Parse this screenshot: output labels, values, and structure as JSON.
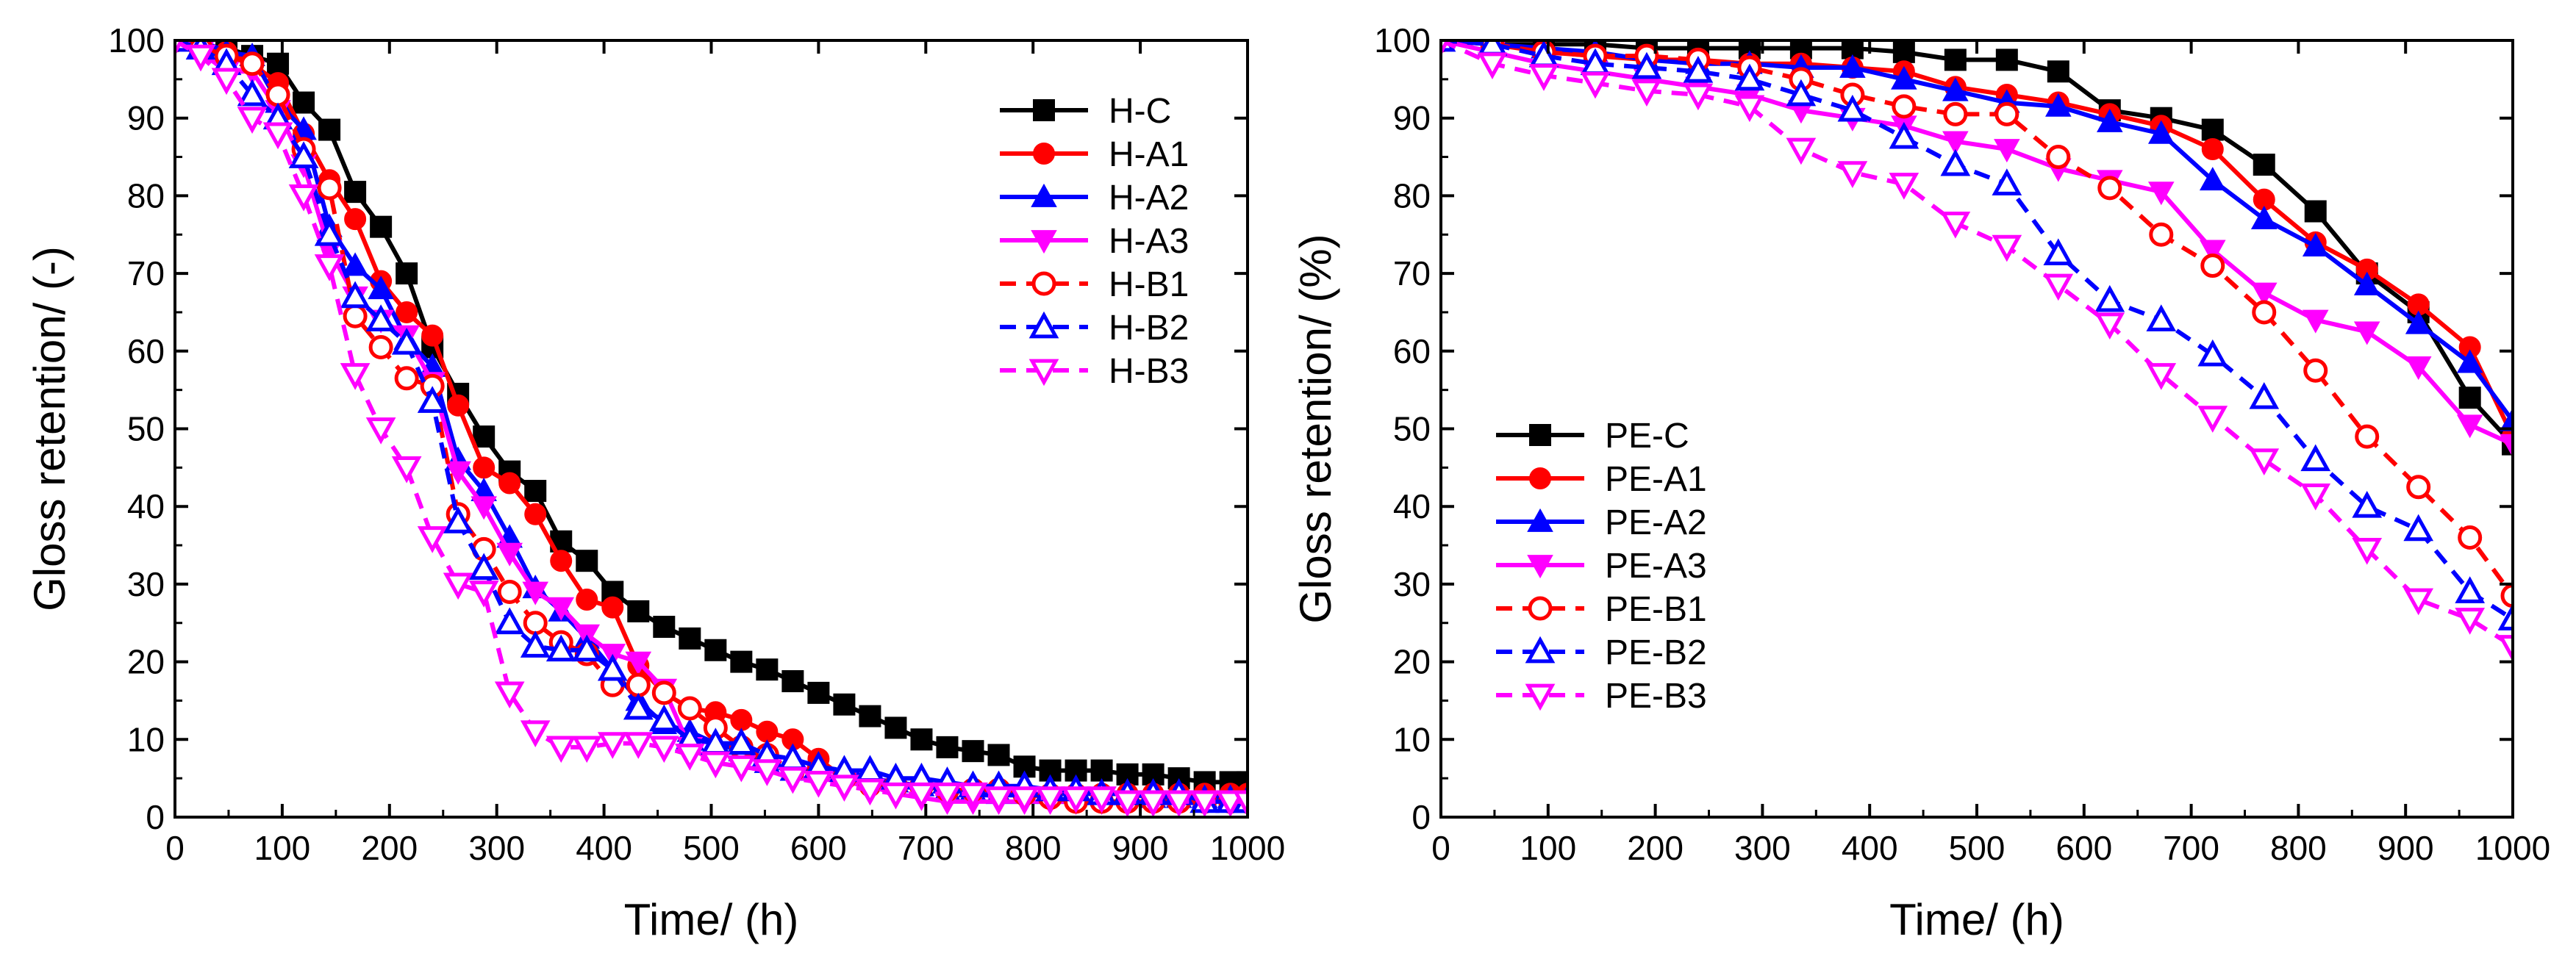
{
  "chart_data": [
    {
      "type": "line",
      "title": "",
      "xlabel": "Time/ (h)",
      "ylabel": "Gloss retention/ (-)",
      "xlim": [
        0,
        1000
      ],
      "ylim": [
        0,
        100
      ],
      "xticks": [
        0,
        100,
        200,
        300,
        400,
        500,
        600,
        700,
        800,
        900,
        1000
      ],
      "yticks": [
        0,
        10,
        20,
        30,
        40,
        50,
        60,
        70,
        80,
        90,
        100
      ],
      "grid": false,
      "legend_position": "top-right",
      "series": [
        {
          "name": "H-C",
          "color": "#000000",
          "marker": "square",
          "filled": true,
          "dashed": false,
          "x": [
            0,
            24,
            48,
            72,
            96,
            120,
            144,
            168,
            192,
            216,
            240,
            264,
            288,
            312,
            336,
            360,
            384,
            408,
            432,
            456,
            480,
            504,
            528,
            552,
            576,
            600,
            624,
            648,
            672,
            696,
            720,
            744,
            768,
            792,
            816,
            840,
            864,
            888,
            912,
            936,
            960,
            984,
            1000
          ],
          "y": [
            100,
            99.5,
            99,
            98,
            97,
            92,
            88.5,
            80.5,
            76,
            70,
            60.5,
            54.5,
            49,
            44.5,
            42,
            35.5,
            33,
            29,
            26.5,
            24.5,
            23,
            21.5,
            20,
            19,
            17.5,
            16,
            14.5,
            13,
            11.5,
            10,
            9,
            8.5,
            8,
            6.5,
            6,
            6,
            6,
            5.5,
            5.5,
            5,
            4.5,
            4.5,
            4.5
          ]
        },
        {
          "name": "H-A1",
          "color": "#ff0000",
          "marker": "circle",
          "filled": true,
          "dashed": false,
          "x": [
            0,
            24,
            48,
            72,
            96,
            120,
            144,
            168,
            192,
            216,
            240,
            264,
            288,
            312,
            336,
            360,
            384,
            408,
            432,
            456,
            480,
            504,
            528,
            552,
            576,
            600,
            624,
            648,
            672,
            696,
            720,
            744,
            768,
            792,
            816,
            840,
            864,
            888,
            912,
            936,
            960,
            984,
            1000
          ],
          "y": [
            100,
            99.5,
            98.5,
            97,
            94.5,
            88,
            82,
            77,
            69,
            65,
            62,
            53,
            45,
            43,
            39,
            33,
            28,
            27,
            19.5,
            16,
            14,
            13.5,
            12.5,
            11,
            10,
            7.5,
            5,
            4,
            4,
            4,
            3.5,
            3.5,
            3.5,
            3,
            3,
            3,
            3,
            3,
            3,
            3,
            3,
            3,
            3
          ]
        },
        {
          "name": "H-A2",
          "color": "#0000ff",
          "marker": "triangle-up",
          "filled": true,
          "dashed": false,
          "x": [
            0,
            24,
            48,
            72,
            96,
            120,
            144,
            168,
            192,
            216,
            240,
            264,
            288,
            312,
            336,
            360,
            384,
            408,
            432,
            456,
            480,
            504,
            528,
            552,
            576,
            600,
            624,
            648,
            672,
            696,
            720,
            744,
            768,
            792,
            816,
            840,
            864,
            888,
            912,
            936,
            960,
            984,
            1000
          ],
          "y": [
            100,
            100,
            98.5,
            98,
            92,
            88.5,
            76,
            71,
            68,
            61.5,
            58,
            46,
            42,
            36,
            29.5,
            26.5,
            23,
            19,
            15,
            12,
            11,
            9.5,
            8.5,
            7,
            6,
            6,
            6,
            5,
            4.5,
            4,
            3.5,
            3.5,
            3,
            3,
            3,
            3,
            3,
            3,
            2.5,
            2.5,
            2.5,
            2.5,
            2.5
          ]
        },
        {
          "name": "H-A3",
          "color": "#ff00ff",
          "marker": "triangle-down",
          "filled": true,
          "dashed": false,
          "x": [
            0,
            24,
            48,
            72,
            96,
            120,
            144,
            168,
            192,
            216,
            240,
            264,
            288,
            312,
            336,
            360,
            384,
            408,
            432,
            456,
            480,
            504,
            528,
            552,
            576,
            600,
            624,
            648,
            672,
            696,
            720,
            744,
            768,
            792,
            816,
            840,
            864,
            888,
            912,
            936,
            960,
            984,
            1000
          ],
          "y": [
            100,
            98.5,
            96,
            96,
            91,
            84,
            73,
            67,
            64,
            62,
            56,
            44.5,
            40,
            34,
            29,
            27,
            23.5,
            21,
            20,
            16.5,
            9,
            7,
            6.5,
            6,
            5,
            5,
            4.5,
            4,
            3,
            2.5,
            2,
            2,
            2,
            2,
            2,
            2,
            2,
            2,
            2,
            2,
            2,
            2,
            2
          ]
        },
        {
          "name": "H-B1",
          "color": "#ff0000",
          "marker": "circle",
          "filled": false,
          "dashed": true,
          "x": [
            0,
            24,
            48,
            72,
            96,
            120,
            144,
            168,
            192,
            216,
            240,
            264,
            288,
            312,
            336,
            360,
            384,
            408,
            432,
            456,
            480,
            504,
            528,
            552,
            576,
            600,
            624,
            648,
            672,
            696,
            720,
            744,
            768,
            792,
            816,
            840,
            864,
            888,
            912,
            936,
            960,
            984,
            1000
          ],
          "y": [
            100,
            99,
            98,
            97,
            93,
            86,
            81,
            64.5,
            60.5,
            56.5,
            55.5,
            39,
            34.5,
            29,
            25,
            22.5,
            21,
            17,
            17,
            16,
            14,
            11.5,
            9,
            8,
            6,
            6,
            5,
            4.5,
            4,
            4,
            3.5,
            3.5,
            3.5,
            3,
            2.5,
            2,
            2,
            2,
            2,
            2,
            2,
            2,
            2
          ]
        },
        {
          "name": "H-B2",
          "color": "#0000ff",
          "marker": "triangle-up",
          "filled": false,
          "dashed": true,
          "x": [
            0,
            24,
            48,
            72,
            96,
            120,
            144,
            168,
            192,
            216,
            240,
            264,
            288,
            312,
            336,
            360,
            384,
            408,
            432,
            456,
            480,
            504,
            528,
            552,
            576,
            600,
            624,
            648,
            672,
            696,
            720,
            744,
            768,
            792,
            816,
            840,
            864,
            888,
            912,
            936,
            960,
            984,
            1000
          ],
          "y": [
            100,
            99,
            97,
            93,
            90,
            85,
            75,
            67,
            64,
            61,
            53.5,
            38,
            32,
            25,
            22,
            21.5,
            21.5,
            19,
            14,
            12.5,
            10,
            9.5,
            9.5,
            8,
            7.5,
            6.5,
            6,
            6,
            5,
            5,
            4.5,
            4,
            4,
            4,
            3.5,
            3.5,
            3,
            3,
            3,
            3,
            2,
            2,
            2
          ]
        },
        {
          "name": "H-B3",
          "color": "#ff00ff",
          "marker": "triangle-down",
          "filled": false,
          "dashed": true,
          "x": [
            0,
            24,
            48,
            72,
            96,
            120,
            144,
            168,
            192,
            216,
            240,
            264,
            288,
            312,
            336,
            360,
            384,
            408,
            432,
            456,
            480,
            504,
            528,
            552,
            576,
            600,
            624,
            648,
            672,
            696,
            720,
            744,
            768,
            792,
            816,
            840,
            864,
            888,
            912,
            936,
            960,
            984,
            1000
          ],
          "y": [
            100,
            98,
            95,
            90,
            88,
            80,
            71,
            57,
            50,
            45,
            36,
            30,
            29,
            16,
            11,
            9,
            9,
            9.5,
            9.5,
            9,
            8,
            7,
            6.5,
            6,
            5,
            4.5,
            4,
            3.5,
            3,
            3,
            3,
            3,
            2.5,
            2.5,
            2.5,
            2.5,
            2.5,
            2,
            2,
            2,
            2,
            2,
            2
          ]
        }
      ]
    },
    {
      "type": "line",
      "title": "",
      "xlabel": "Time/ (h)",
      "ylabel": "Gloss retention/ (%)",
      "xlim": [
        0,
        1000
      ],
      "ylim": [
        0,
        100
      ],
      "xticks": [
        0,
        100,
        200,
        300,
        400,
        500,
        600,
        700,
        800,
        900,
        1000
      ],
      "yticks": [
        0,
        10,
        20,
        30,
        40,
        50,
        60,
        70,
        80,
        90,
        100
      ],
      "grid": false,
      "legend_position": "bottom-left",
      "series": [
        {
          "name": "PE-C",
          "color": "#000000",
          "marker": "square",
          "filled": true,
          "dashed": false,
          "x": [
            0,
            48,
            96,
            144,
            192,
            240,
            288,
            336,
            384,
            432,
            480,
            528,
            576,
            624,
            672,
            720,
            768,
            816,
            864,
            912,
            960,
            1000
          ],
          "y": [
            100,
            99.5,
            99.5,
            99.5,
            99,
            99,
            99,
            99,
            99,
            98.5,
            97.5,
            97.5,
            96,
            91,
            90,
            88.5,
            84,
            78,
            70,
            65,
            54,
            48
          ]
        },
        {
          "name": "PE-A1",
          "color": "#ff0000",
          "marker": "circle",
          "filled": true,
          "dashed": false,
          "x": [
            0,
            48,
            96,
            144,
            192,
            240,
            288,
            336,
            384,
            432,
            480,
            528,
            576,
            624,
            672,
            720,
            768,
            816,
            864,
            912,
            960,
            1000
          ],
          "y": [
            100,
            99.5,
            98.5,
            98,
            97.5,
            97.5,
            97,
            97,
            96.5,
            96,
            94,
            93,
            92,
            90.5,
            89,
            86,
            79.5,
            74,
            70.5,
            66,
            60.5,
            49
          ]
        },
        {
          "name": "PE-A2",
          "color": "#0000ff",
          "marker": "triangle-up",
          "filled": true,
          "dashed": false,
          "x": [
            0,
            48,
            96,
            144,
            192,
            240,
            288,
            336,
            384,
            432,
            480,
            528,
            576,
            624,
            672,
            720,
            768,
            816,
            864,
            912,
            960,
            1000
          ],
          "y": [
            100,
            99.5,
            99,
            98.5,
            97.5,
            97,
            97,
            96.5,
            96.5,
            95,
            93.5,
            92,
            91.5,
            89.5,
            88,
            82,
            77,
            73.5,
            68.5,
            63.5,
            58.5,
            51
          ]
        },
        {
          "name": "PE-A3",
          "color": "#ff00ff",
          "marker": "triangle-down",
          "filled": true,
          "dashed": false,
          "x": [
            0,
            48,
            96,
            144,
            192,
            240,
            288,
            336,
            384,
            432,
            480,
            528,
            576,
            624,
            672,
            720,
            768,
            816,
            864,
            912,
            960,
            1000
          ],
          "y": [
            100,
            98.5,
            97,
            96,
            95,
            94,
            93,
            91,
            90,
            89,
            87,
            86,
            83.5,
            82,
            80.5,
            73,
            67.5,
            64,
            62.5,
            58,
            50.5,
            48
          ]
        },
        {
          "name": "PE-B1",
          "color": "#ff0000",
          "marker": "circle",
          "filled": false,
          "dashed": true,
          "x": [
            0,
            48,
            96,
            144,
            192,
            240,
            288,
            336,
            384,
            432,
            480,
            528,
            576,
            624,
            672,
            720,
            768,
            816,
            864,
            912,
            960,
            1000
          ],
          "y": [
            100,
            99.5,
            98.5,
            98,
            98,
            97.5,
            96.5,
            95,
            93,
            91.5,
            90.5,
            90.5,
            85,
            81,
            75,
            71,
            65,
            57.5,
            49,
            42.5,
            36,
            28.5
          ]
        },
        {
          "name": "PE-B2",
          "color": "#0000ff",
          "marker": "triangle-up",
          "filled": false,
          "dashed": true,
          "x": [
            0,
            48,
            96,
            144,
            192,
            240,
            288,
            336,
            384,
            432,
            480,
            528,
            576,
            624,
            672,
            720,
            768,
            816,
            864,
            912,
            960,
            1000
          ],
          "y": [
            100,
            99.5,
            98,
            97,
            96.5,
            96,
            95,
            93,
            91,
            87.5,
            84,
            81.5,
            72.5,
            66.5,
            64,
            59.5,
            54,
            46,
            40,
            37,
            29,
            25.5
          ]
        },
        {
          "name": "PE-B3",
          "color": "#ff00ff",
          "marker": "triangle-down",
          "filled": false,
          "dashed": true,
          "x": [
            0,
            48,
            96,
            144,
            192,
            240,
            288,
            336,
            384,
            432,
            480,
            528,
            576,
            624,
            672,
            720,
            768,
            816,
            864,
            912,
            960,
            1000
          ],
          "y": [
            100,
            97,
            95.5,
            94.5,
            93.5,
            93,
            91.5,
            86,
            83,
            81.5,
            76.5,
            73.5,
            68.5,
            63.5,
            57,
            51.5,
            46,
            41.5,
            34.5,
            28,
            25.5,
            22
          ]
        }
      ]
    }
  ]
}
